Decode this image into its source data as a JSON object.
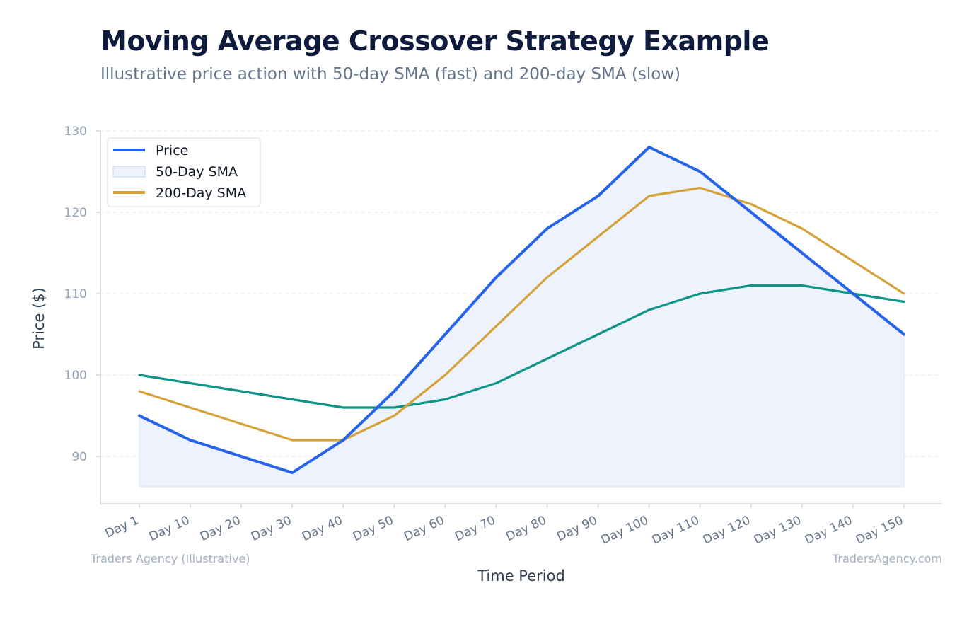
{
  "chart_data": {
    "type": "line",
    "title": "Moving Average Crossover Strategy Example",
    "subtitle": "Illustrative price action with 50-day SMA (fast) and 200-day SMA (slow)",
    "xlabel": "Time Period",
    "ylabel": "Price ($)",
    "categories": [
      "Day 1",
      "Day 10",
      "Day 20",
      "Day 30",
      "Day 40",
      "Day 50",
      "Day 60",
      "Day 70",
      "Day 80",
      "Day 90",
      "Day 100",
      "Day 110",
      "Day 120",
      "Day 130",
      "Day 140",
      "Day 150"
    ],
    "ylim": [
      84,
      130
    ],
    "yticks": [
      90,
      100,
      110,
      120,
      130
    ],
    "grid": true,
    "legend_position": "top-left",
    "series": [
      {
        "name": "Price",
        "color": "#2563eb",
        "fill_color": "#eef2fc",
        "values": [
          95,
          92,
          90,
          88,
          92,
          98,
          105,
          112,
          118,
          122,
          128,
          125,
          120,
          115,
          110,
          105
        ]
      },
      {
        "name": "50-Day SMA",
        "color": "#d4a23a",
        "values": [
          98,
          96,
          94,
          92,
          92,
          95,
          100,
          106,
          112,
          117,
          122,
          123,
          121,
          118,
          114,
          110
        ]
      },
      {
        "name": "200-Day SMA",
        "color": "#0f9488",
        "values": [
          100,
          99,
          98,
          97,
          96,
          96,
          97,
          99,
          102,
          105,
          108,
          110,
          111,
          111,
          110,
          109
        ]
      }
    ],
    "legend": [
      {
        "label": "Price",
        "style": "line",
        "color": "#2563eb"
      },
      {
        "label": "50-Day SMA",
        "style": "patch",
        "color": "#eef2fc"
      },
      {
        "label": "200-Day SMA",
        "style": "line",
        "color": "#d4a23a"
      }
    ],
    "footnote_left": "Traders Agency (Illustrative)",
    "footnote_right": "TradersAgency.com"
  }
}
